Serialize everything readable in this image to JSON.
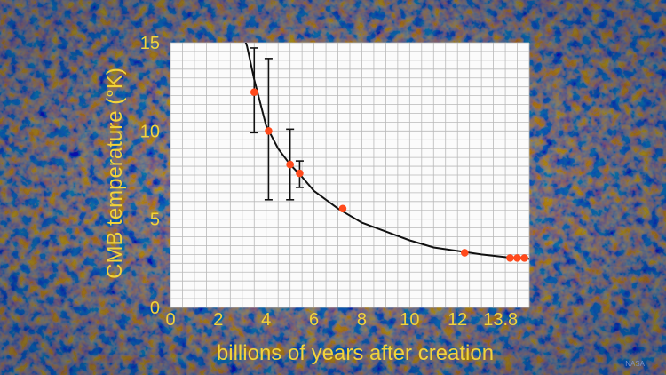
{
  "chart_data": {
    "type": "scatter",
    "title": "",
    "xlabel": "billions of years after creation",
    "ylabel": "CMB temperature (°K)",
    "xlim": [
      0,
      15
    ],
    "ylim": [
      0,
      15
    ],
    "x_ticks": [
      0,
      2,
      4,
      6,
      8,
      10,
      12,
      13.8
    ],
    "y_ticks": [
      0,
      5,
      10,
      15
    ],
    "grid": true,
    "legend": "none",
    "series": [
      {
        "points": [
          {
            "x": 3.5,
            "y": 12.2,
            "err_low": 9.9,
            "err_high": 14.7
          },
          {
            "x": 4.1,
            "y": 10.0,
            "err_low": 6.1,
            "err_high": 14.1
          },
          {
            "x": 5.0,
            "y": 8.1,
            "err_low": 6.1,
            "err_high": 10.1
          },
          {
            "x": 5.4,
            "y": 7.6,
            "err_low": 6.8,
            "err_high": 8.3
          },
          {
            "x": 7.2,
            "y": 5.6
          },
          {
            "x": 12.3,
            "y": 3.1
          },
          {
            "x": 14.2,
            "y": 2.8
          },
          {
            "x": 14.5,
            "y": 2.8
          },
          {
            "x": 14.8,
            "y": 2.8
          }
        ],
        "color": "#ff4a1c"
      }
    ],
    "fit_curve": {
      "color": "#111111",
      "points": [
        [
          2.9,
          16.0
        ],
        [
          3.2,
          14.8
        ],
        [
          3.5,
          12.9
        ],
        [
          4.0,
          10.3
        ],
        [
          4.5,
          9.0
        ],
        [
          5.0,
          8.1
        ],
        [
          5.5,
          7.4
        ],
        [
          6.0,
          6.6
        ],
        [
          7.0,
          5.6
        ],
        [
          8.0,
          4.8
        ],
        [
          9.0,
          4.3
        ],
        [
          10.0,
          3.8
        ],
        [
          11.0,
          3.4
        ],
        [
          12.0,
          3.2
        ],
        [
          13.0,
          3.0
        ],
        [
          14.0,
          2.85
        ],
        [
          15.0,
          2.75
        ]
      ]
    }
  },
  "credit": "NASA",
  "colors": {
    "axis_text": "#f2d33a",
    "plot_bg": "#fbfbfb",
    "grid": "#b9b9b9",
    "point": "#ff4a1c",
    "curve": "#111111"
  }
}
